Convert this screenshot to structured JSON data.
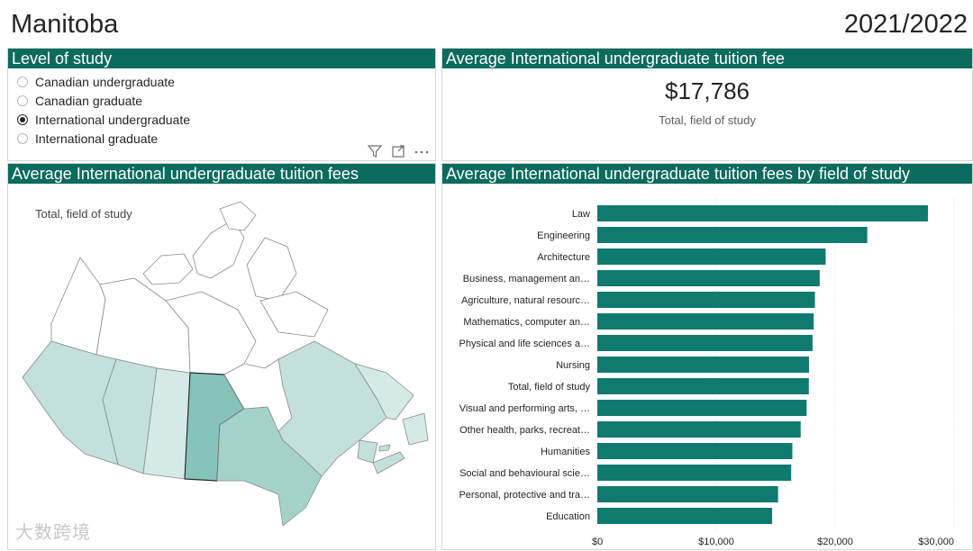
{
  "header": {
    "province": "Manitoba",
    "year": "2021/2022"
  },
  "level_of_study": {
    "title": "Level of study",
    "options": [
      {
        "label": "Canadian undergraduate",
        "selected": false
      },
      {
        "label": "Canadian graduate",
        "selected": false
      },
      {
        "label": "International undergraduate",
        "selected": true
      },
      {
        "label": "International graduate",
        "selected": false
      }
    ]
  },
  "kpi": {
    "title": "Average International undergraduate tuition fee",
    "value": "$17,786",
    "label": "Total, field of study"
  },
  "map": {
    "title": "Average International undergraduate tuition fees",
    "subtitle": "Total, field of study",
    "highlighted": "Manitoba",
    "colors": {
      "highlight": "#86c3bb",
      "light": "#c3e0dc",
      "lighter": "#d5eae7",
      "medium": "#a5d1cb",
      "territory": "#ffffff"
    }
  },
  "watermark": "大数跨境",
  "chart_data": {
    "type": "bar",
    "orientation": "horizontal",
    "title": "Average International undergraduate tuition fees by field of study",
    "categories": [
      "Law",
      "Engineering",
      "Architecture",
      "Business, management an…",
      "Agriculture, natural resourc…",
      "Mathematics, computer an…",
      "Physical and life sciences a…",
      "Nursing",
      "Total, field of study",
      "Visual and performing arts, …",
      "Other health, parks, recreat…",
      "Humanities",
      "Social and behavioural scie…",
      "Personal, protective and tra…",
      "Education"
    ],
    "values": [
      27800,
      22700,
      19200,
      18700,
      18300,
      18200,
      18100,
      17800,
      17786,
      17600,
      17100,
      16400,
      16300,
      15200,
      14700
    ],
    "xlim": [
      0,
      30000
    ],
    "xticks": [
      0,
      10000,
      20000,
      30000
    ],
    "xtick_labels": [
      "$0",
      "$10,000",
      "$20,000",
      "$30,000"
    ],
    "bar_color": "#117a70",
    "grid": true
  }
}
